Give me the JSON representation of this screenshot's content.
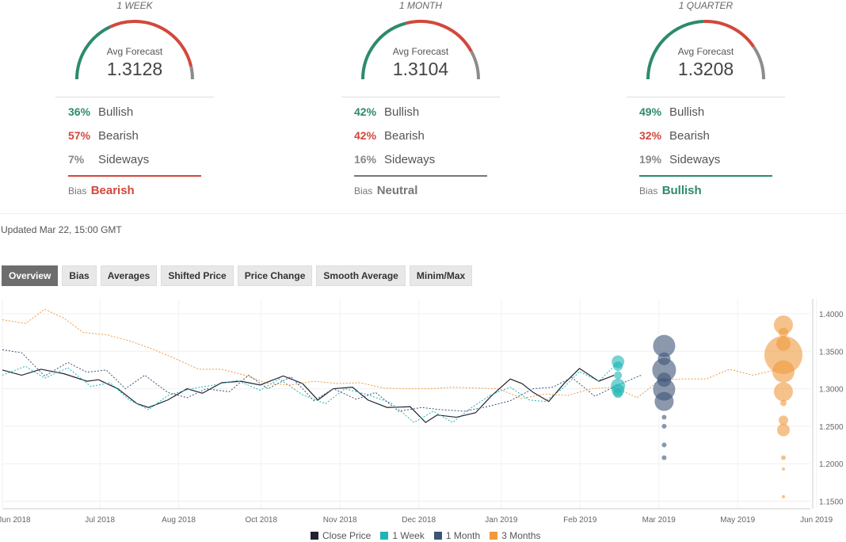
{
  "panels": [
    {
      "period": "1 WEEK",
      "avg_label": "Avg Forecast",
      "avg_value": "1.3128",
      "bullish_pct": "36%",
      "bullish_label": "Bullish",
      "bearish_pct": "57%",
      "bearish_label": "Bearish",
      "sideways_pct": "7%",
      "sideways_label": "Sideways",
      "bias_label": "Bias",
      "bias_value": "Bearish",
      "bias_color": "#d2483c",
      "gauge": {
        "bullish": 36,
        "bearish": 57,
        "sideways": 7
      }
    },
    {
      "period": "1 MONTH",
      "avg_label": "Avg Forecast",
      "avg_value": "1.3104",
      "bullish_pct": "42%",
      "bullish_label": "Bullish",
      "bearish_pct": "42%",
      "bearish_label": "Bearish",
      "sideways_pct": "16%",
      "sideways_label": "Sideways",
      "bias_label": "Bias",
      "bias_value": "Neutral",
      "bias_color": "#777777",
      "gauge": {
        "bullish": 42,
        "bearish": 42,
        "sideways": 16
      }
    },
    {
      "period": "1 QUARTER",
      "avg_label": "Avg Forecast",
      "avg_value": "1.3208",
      "bullish_pct": "49%",
      "bullish_label": "Bullish",
      "bearish_pct": "32%",
      "bearish_label": "Bearish",
      "sideways_pct": "19%",
      "sideways_label": "Sideways",
      "bias_label": "Bias",
      "bias_value": "Bullish",
      "bias_color": "#2d8a6e",
      "gauge": {
        "bullish": 49,
        "bearish": 32,
        "sideways": 19
      }
    }
  ],
  "colors": {
    "bullish": "#2d8a6e",
    "bearish": "#d2483c",
    "sideways": "#8c8c8c"
  },
  "updated": "Updated Mar 22, 15:00 GMT",
  "tabs": [
    "Overview",
    "Bias",
    "Averages",
    "Shifted Price",
    "Price Change",
    "Smooth Average",
    "Minim/Max"
  ],
  "active_tab": "Overview",
  "chart_data": {
    "type": "line",
    "x_ticks": [
      "Jun 2018",
      "Jul 2018",
      "Aug 2018",
      "Oct 2018",
      "Nov 2018",
      "Dec 2018",
      "Jan 2019",
      "Feb 2019",
      "Mar 2019",
      "May 2019",
      "Jun 2019"
    ],
    "y_ticks": [
      "1.4000",
      "1.3500",
      "1.3000",
      "1.2500",
      "1.2000",
      "1.1500"
    ],
    "ylim": [
      1.14,
      1.42
    ],
    "grid": true,
    "legend_position": "bottom",
    "legend": [
      "Close Price",
      "1 Week",
      "1 Month",
      "3 Months"
    ],
    "series": [
      {
        "name": "Close Price",
        "color": "#222233",
        "style": "solid",
        "x": [
          0,
          5,
          10,
          16,
          22,
          25,
          30,
          35,
          38,
          43,
          48,
          52,
          57,
          62,
          67,
          73,
          78,
          82,
          86,
          91,
          95,
          100,
          106,
          110,
          113,
          118,
          123,
          127,
          132,
          135,
          138,
          142,
          146,
          150,
          155,
          159
        ],
        "y": [
          1.325,
          1.318,
          1.326,
          1.32,
          1.31,
          1.312,
          1.3,
          1.28,
          1.275,
          1.285,
          1.3,
          1.294,
          1.308,
          1.31,
          1.305,
          1.317,
          1.307,
          1.285,
          1.3,
          1.302,
          1.285,
          1.275,
          1.276,
          1.255,
          1.265,
          1.262,
          1.268,
          1.29,
          1.313,
          1.307,
          1.295,
          1.283,
          1.307,
          1.327,
          1.31,
          1.318
        ]
      },
      {
        "name": "1 Week",
        "color": "#1eb5b5",
        "style": "dotted",
        "x": [
          0,
          6,
          11,
          17,
          23,
          28,
          33,
          38,
          43,
          49,
          55,
          61,
          67,
          72,
          78,
          84,
          89,
          95,
          101,
          107,
          112,
          117,
          122,
          127,
          132,
          137,
          141,
          146,
          150,
          155,
          160
        ],
        "y": [
          1.318,
          1.33,
          1.314,
          1.328,
          1.303,
          1.308,
          1.285,
          1.272,
          1.291,
          1.3,
          1.305,
          1.311,
          1.298,
          1.313,
          1.292,
          1.28,
          1.3,
          1.292,
          1.281,
          1.255,
          1.27,
          1.255,
          1.275,
          1.292,
          1.302,
          1.285,
          1.283,
          1.302,
          1.323,
          1.31,
          1.335
        ]
      },
      {
        "name": "1 Month",
        "color": "#3e5476",
        "style": "dotted",
        "x": [
          0,
          5,
          11,
          17,
          22,
          27,
          32,
          37,
          43,
          48,
          53,
          59,
          64,
          69,
          75,
          81,
          86,
          92,
          97,
          103,
          109,
          114,
          120,
          126,
          132,
          138,
          143,
          148,
          154,
          160,
          166
        ],
        "y": [
          1.352,
          1.348,
          1.317,
          1.335,
          1.322,
          1.325,
          1.3,
          1.318,
          1.295,
          1.288,
          1.3,
          1.296,
          1.318,
          1.3,
          1.316,
          1.284,
          1.3,
          1.286,
          1.295,
          1.27,
          1.275,
          1.272,
          1.27,
          1.276,
          1.284,
          1.3,
          1.302,
          1.315,
          1.29,
          1.305,
          1.318
        ]
      },
      {
        "name": "3 Months",
        "color": "#f09a3e",
        "style": "dotted",
        "x": [
          0,
          6,
          11,
          16,
          21,
          27,
          33,
          39,
          45,
          51,
          57,
          63,
          69,
          75,
          81,
          87,
          93,
          99,
          105,
          111,
          117,
          123,
          129,
          135,
          141,
          147,
          153,
          159,
          165,
          171,
          177,
          183,
          189,
          195,
          201
        ],
        "y": [
          1.392,
          1.387,
          1.406,
          1.394,
          1.375,
          1.372,
          1.364,
          1.353,
          1.34,
          1.326,
          1.326,
          1.318,
          1.307,
          1.305,
          1.31,
          1.307,
          1.308,
          1.301,
          1.3,
          1.3,
          1.302,
          1.301,
          1.3,
          1.287,
          1.293,
          1.291,
          1.3,
          1.302,
          1.288,
          1.312,
          1.313,
          1.313,
          1.326,
          1.318,
          1.325
        ]
      }
    ],
    "forecast_bubbles": [
      {
        "series": "1 Week",
        "color": "#1eb5b5",
        "x": 160,
        "values": [
          1.336,
          1.33,
          1.318,
          1.304,
          1.298,
          1.294
        ],
        "sizes": [
          8,
          6,
          5,
          9,
          8,
          6
        ]
      },
      {
        "series": "1 Month",
        "color": "#3e5476",
        "x": 172,
        "values": [
          1.357,
          1.34,
          1.325,
          1.312,
          1.299,
          1.283,
          1.262,
          1.25,
          1.225,
          1.208
        ],
        "sizes": [
          14,
          8,
          15,
          9,
          14,
          12,
          3,
          3,
          3,
          3
        ]
      },
      {
        "series": "3 Months",
        "color": "#f09a3e",
        "x": 203,
        "values": [
          1.385,
          1.375,
          1.36,
          1.345,
          1.323,
          1.296,
          1.281,
          1.258,
          1.245,
          1.208,
          1.193,
          1.156
        ],
        "sizes": [
          12,
          6,
          9,
          24,
          14,
          12,
          4,
          6,
          8,
          3,
          2,
          2
        ]
      }
    ]
  }
}
